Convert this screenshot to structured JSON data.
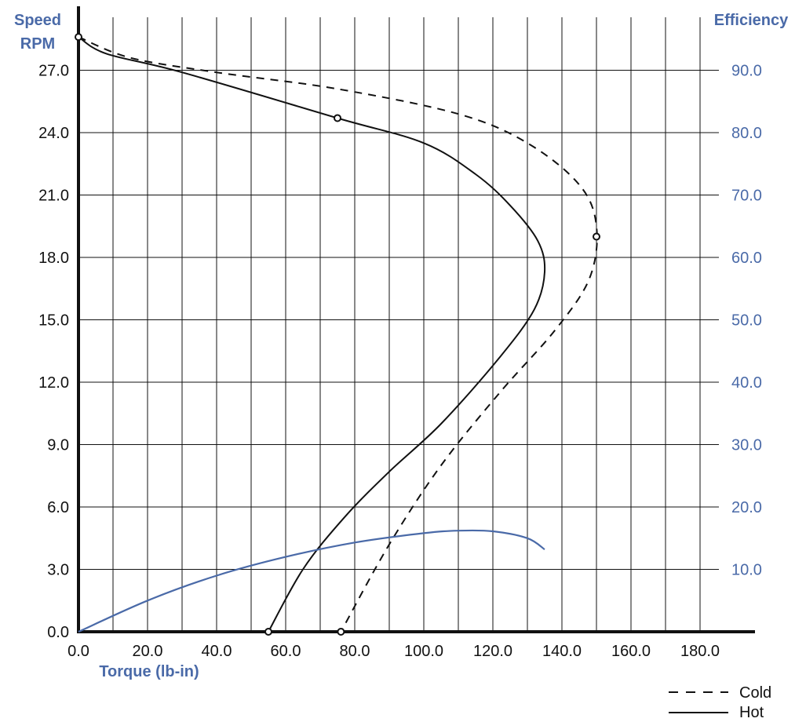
{
  "chart_data": {
    "type": "line",
    "title": "",
    "left_axis": {
      "label_line1": "Speed",
      "label_line2": "RPM",
      "range": [
        0,
        30
      ],
      "ticks": [
        "0.0",
        "3.0",
        "6.0",
        "9.0",
        "12.0",
        "15.0",
        "18.0",
        "21.0",
        "24.0",
        "27.0"
      ]
    },
    "right_axis": {
      "label": "Efficiency",
      "range": [
        0,
        100
      ],
      "ticks": [
        "10.0",
        "20.0",
        "30.0",
        "40.0",
        "50.0",
        "60.0",
        "70.0",
        "80.0",
        "90.0"
      ]
    },
    "x_axis": {
      "label": "Torque  (lb-in)",
      "range": [
        0,
        200
      ],
      "ticks": [
        "0.0",
        "20.0",
        "40.0",
        "60.0",
        "80.0",
        "100.0",
        "120.0",
        "140.0",
        "160.0",
        "180.0"
      ]
    },
    "grid": true,
    "legend_position": "bottom-right",
    "colors": {
      "axes": "#111111",
      "grid": "#111111",
      "efficiency": "#4a6aa8",
      "axis_title": "#4a6aa8"
    },
    "series": [
      {
        "name": "Cold",
        "axis": "left",
        "style": "dashed",
        "points": [
          [
            0,
            28.6
          ],
          [
            15,
            27.6
          ],
          [
            40,
            26.9
          ],
          [
            75,
            26.1
          ],
          [
            110,
            24.9
          ],
          [
            130,
            23.5
          ],
          [
            145,
            21.5
          ],
          [
            150,
            19.5
          ],
          [
            148,
            17.0
          ],
          [
            138,
            14.5
          ],
          [
            122,
            11.5
          ],
          [
            105,
            8.0
          ],
          [
            90,
            4.2
          ],
          [
            76,
            0.0
          ]
        ]
      },
      {
        "name": "Hot",
        "axis": "left",
        "style": "solid",
        "points": [
          [
            0,
            28.6
          ],
          [
            8,
            27.8
          ],
          [
            30,
            26.9
          ],
          [
            75,
            24.7
          ],
          [
            100,
            23.5
          ],
          [
            115,
            22.0
          ],
          [
            125,
            20.5
          ],
          [
            133,
            18.8
          ],
          [
            135,
            17.3
          ],
          [
            132,
            15.5
          ],
          [
            122,
            13.2
          ],
          [
            105,
            10.0
          ],
          [
            90,
            7.7
          ],
          [
            77,
            5.5
          ],
          [
            65,
            3.0
          ],
          [
            55,
            0.0
          ]
        ]
      },
      {
        "name": "Efficiency",
        "axis": "right",
        "style": "solid",
        "points": [
          [
            0,
            0
          ],
          [
            20,
            5.0
          ],
          [
            40,
            9.0
          ],
          [
            60,
            12.0
          ],
          [
            80,
            14.3
          ],
          [
            100,
            15.8
          ],
          [
            110,
            16.2
          ],
          [
            120,
            16.1
          ],
          [
            130,
            15.0
          ],
          [
            135,
            13.2
          ]
        ]
      }
    ],
    "markers": [
      {
        "x": 0,
        "y": 28.6,
        "axis": "left"
      },
      {
        "x": 75,
        "y": 24.7,
        "axis": "left"
      },
      {
        "x": 150,
        "y": 19.0,
        "axis": "left"
      },
      {
        "x": 55,
        "y": 0.0,
        "axis": "left"
      },
      {
        "x": 76,
        "y": 0.0,
        "axis": "left"
      }
    ],
    "legend": [
      {
        "label": "Cold",
        "style": "dashed"
      },
      {
        "label": "Hot",
        "style": "solid"
      }
    ]
  }
}
